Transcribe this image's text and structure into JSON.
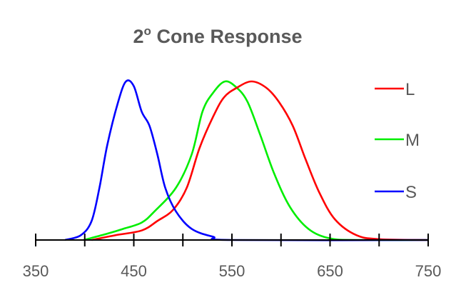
{
  "chart_data": {
    "type": "line",
    "title": "2º Cone Response",
    "title_main": "2",
    "title_sup": "o",
    "title_rest": " Cone Response",
    "xlabel": "",
    "ylabel": "",
    "xlim": [
      350,
      750
    ],
    "ylim": [
      0,
      1
    ],
    "x_ticks": [
      350,
      400,
      450,
      500,
      550,
      600,
      650,
      700,
      750
    ],
    "x_tick_labels": [
      "350",
      "450",
      "550",
      "650",
      "750"
    ],
    "grid": false,
    "legend_placement": "right",
    "series": [
      {
        "name": "L",
        "color": "#ff0000",
        "points": [
          [
            407,
            0
          ],
          [
            431,
            0.03
          ],
          [
            458,
            0.06
          ],
          [
            474,
            0.12
          ],
          [
            490,
            0.19
          ],
          [
            504,
            0.33
          ],
          [
            517,
            0.58
          ],
          [
            531,
            0.78
          ],
          [
            542,
            0.9
          ],
          [
            555,
            0.96
          ],
          [
            570,
            1.0
          ],
          [
            585,
            0.96
          ],
          [
            598,
            0.87
          ],
          [
            612,
            0.72
          ],
          [
            625,
            0.51
          ],
          [
            639,
            0.3
          ],
          [
            655,
            0.13
          ],
          [
            677,
            0.03
          ],
          [
            701,
            0.005
          ],
          [
            750,
            0
          ]
        ]
      },
      {
        "name": "M",
        "color": "#00ee00",
        "points": [
          [
            399,
            0
          ],
          [
            423,
            0.04
          ],
          [
            439,
            0.07
          ],
          [
            458,
            0.11
          ],
          [
            471,
            0.18
          ],
          [
            493,
            0.33
          ],
          [
            509,
            0.54
          ],
          [
            520,
            0.81
          ],
          [
            531,
            0.93
          ],
          [
            543,
            1.0
          ],
          [
            555,
            0.96
          ],
          [
            566,
            0.87
          ],
          [
            579,
            0.66
          ],
          [
            593,
            0.42
          ],
          [
            609,
            0.21
          ],
          [
            628,
            0.07
          ],
          [
            650,
            0.01
          ],
          [
            679,
            0
          ],
          [
            750,
            0
          ]
        ]
      },
      {
        "name": "S",
        "color": "#0000ff",
        "points": [
          [
            380,
            0
          ],
          [
            396,
            0.03
          ],
          [
            407,
            0.12
          ],
          [
            415,
            0.33
          ],
          [
            423,
            0.6
          ],
          [
            434,
            0.87
          ],
          [
            442,
            1.0
          ],
          [
            450,
            0.97
          ],
          [
            458,
            0.81
          ],
          [
            466,
            0.72
          ],
          [
            474,
            0.54
          ],
          [
            482,
            0.33
          ],
          [
            493,
            0.18
          ],
          [
            509,
            0.07
          ],
          [
            531,
            0.02
          ],
          [
            550,
            0
          ],
          [
            750,
            0
          ]
        ]
      }
    ]
  }
}
